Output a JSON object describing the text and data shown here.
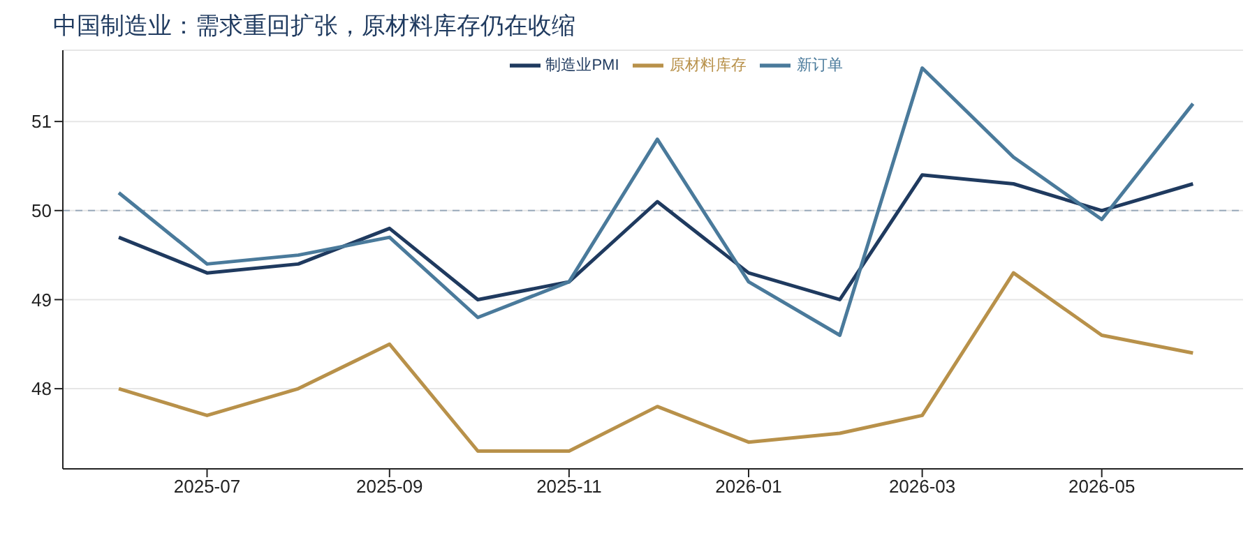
{
  "chart_data": {
    "type": "line",
    "title": "中国制造业：需求重回扩张，原材料库存仍在收缩",
    "x": [
      "2025-06",
      "2025-07",
      "2025-08",
      "2025-09",
      "2025-10",
      "2025-11",
      "2025-12",
      "2026-01",
      "2026-02",
      "2026-03",
      "2026-04",
      "2026-05",
      "2026-06"
    ],
    "series": [
      {
        "name": "制造业PMI",
        "color": "#1f3a5f",
        "values": [
          49.7,
          49.3,
          49.4,
          49.8,
          49.0,
          49.2,
          50.1,
          49.3,
          49.0,
          50.4,
          50.3,
          50.0,
          50.3
        ]
      },
      {
        "name": "新订单",
        "color": "#4a7a9b",
        "values": [
          50.2,
          49.4,
          49.5,
          49.7,
          48.8,
          49.2,
          50.8,
          49.2,
          48.6,
          51.6,
          50.6,
          49.9,
          51.2
        ]
      },
      {
        "name": "原材料库存",
        "color": "#b8914a",
        "values": [
          48.0,
          47.7,
          48.0,
          48.5,
          47.3,
          47.3,
          47.8,
          47.4,
          47.5,
          47.7,
          49.3,
          48.6,
          48.4
        ]
      }
    ],
    "xlim": [
      "2025-05-13",
      "2026-06-18"
    ],
    "xticks": [
      "2025-07",
      "2025-09",
      "2025-11",
      "2026-01",
      "2026-03",
      "2026-05"
    ],
    "ylim": [
      47.1,
      51.8
    ],
    "yticks": [
      48,
      49,
      50,
      51
    ],
    "ref_lines": [
      {
        "axis": "y",
        "value": 50,
        "color": "#9aaabb",
        "line_style": "dashed"
      }
    ],
    "grid": "y",
    "legend": "top left",
    "marker": "none",
    "line_style": "solid"
  }
}
